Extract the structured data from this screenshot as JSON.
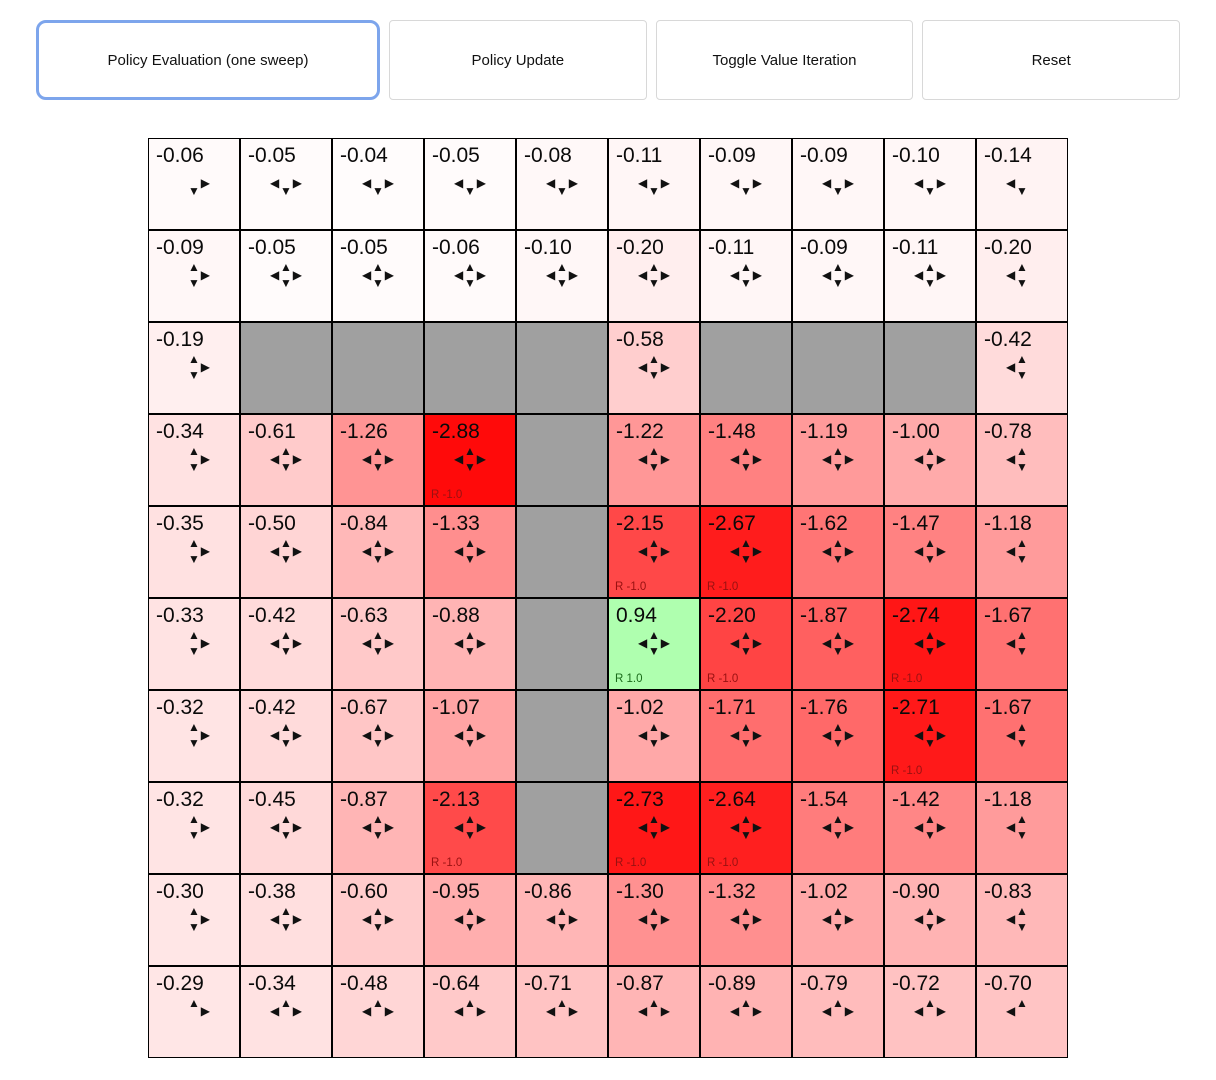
{
  "toolbar": {
    "buttons": [
      {
        "label": "Policy Evaluation (one sweep)",
        "active": true
      },
      {
        "label": "Policy Update",
        "active": false
      },
      {
        "label": "Toggle Value Iteration",
        "active": false
      },
      {
        "label": "Reset",
        "active": false
      }
    ]
  },
  "colors": {
    "wall": "#a0a0a0",
    "active_button_border": "#7da5ec",
    "grid_border": "#000000",
    "reward_negative_text": "#991111",
    "reward_positive_text": "#1a6b1a"
  },
  "arrow_glyphs": {
    "u": "▲",
    "d": "▼",
    "l": "◀",
    "r": "▶"
  },
  "grid": {
    "rows": 10,
    "cols": 10,
    "color_scale": {
      "neutral": "#ffffff",
      "negative_max": "#ff0000",
      "positive_max": "#00ff00",
      "abs_max": 3
    },
    "cells": [
      [
        {
          "value": "-0.06",
          "dirs": "dr"
        },
        {
          "value": "-0.05",
          "dirs": "dlr"
        },
        {
          "value": "-0.04",
          "dirs": "dlr"
        },
        {
          "value": "-0.05",
          "dirs": "dlr"
        },
        {
          "value": "-0.08",
          "dirs": "dlr"
        },
        {
          "value": "-0.11",
          "dirs": "dlr"
        },
        {
          "value": "-0.09",
          "dirs": "dlr"
        },
        {
          "value": "-0.09",
          "dirs": "dlr"
        },
        {
          "value": "-0.10",
          "dirs": "dlr"
        },
        {
          "value": "-0.14",
          "dirs": "dl"
        }
      ],
      [
        {
          "value": "-0.09",
          "dirs": "udr"
        },
        {
          "value": "-0.05",
          "dirs": "udlr"
        },
        {
          "value": "-0.05",
          "dirs": "udlr"
        },
        {
          "value": "-0.06",
          "dirs": "udlr"
        },
        {
          "value": "-0.10",
          "dirs": "udlr"
        },
        {
          "value": "-0.20",
          "dirs": "udlr"
        },
        {
          "value": "-0.11",
          "dirs": "udlr"
        },
        {
          "value": "-0.09",
          "dirs": "udlr"
        },
        {
          "value": "-0.11",
          "dirs": "udlr"
        },
        {
          "value": "-0.20",
          "dirs": "udl"
        }
      ],
      [
        {
          "value": "-0.19",
          "dirs": "udr"
        },
        {
          "wall": true
        },
        {
          "wall": true
        },
        {
          "wall": true
        },
        {
          "wall": true
        },
        {
          "value": "-0.58",
          "dirs": "udlr"
        },
        {
          "wall": true
        },
        {
          "wall": true
        },
        {
          "wall": true
        },
        {
          "value": "-0.42",
          "dirs": "udl"
        }
      ],
      [
        {
          "value": "-0.34",
          "dirs": "udr"
        },
        {
          "value": "-0.61",
          "dirs": "udlr"
        },
        {
          "value": "-1.26",
          "dirs": "udlr"
        },
        {
          "value": "-2.88",
          "dirs": "udlr",
          "reward": "R -1.0"
        },
        {
          "wall": true
        },
        {
          "value": "-1.22",
          "dirs": "udlr"
        },
        {
          "value": "-1.48",
          "dirs": "udlr"
        },
        {
          "value": "-1.19",
          "dirs": "udlr"
        },
        {
          "value": "-1.00",
          "dirs": "udlr"
        },
        {
          "value": "-0.78",
          "dirs": "udl"
        }
      ],
      [
        {
          "value": "-0.35",
          "dirs": "udr"
        },
        {
          "value": "-0.50",
          "dirs": "udlr"
        },
        {
          "value": "-0.84",
          "dirs": "udlr"
        },
        {
          "value": "-1.33",
          "dirs": "udlr"
        },
        {
          "wall": true
        },
        {
          "value": "-2.15",
          "dirs": "udlr",
          "reward": "R -1.0"
        },
        {
          "value": "-2.67",
          "dirs": "udlr",
          "reward": "R -1.0"
        },
        {
          "value": "-1.62",
          "dirs": "udlr"
        },
        {
          "value": "-1.47",
          "dirs": "udlr"
        },
        {
          "value": "-1.18",
          "dirs": "udl"
        }
      ],
      [
        {
          "value": "-0.33",
          "dirs": "udr"
        },
        {
          "value": "-0.42",
          "dirs": "udlr"
        },
        {
          "value": "-0.63",
          "dirs": "udlr"
        },
        {
          "value": "-0.88",
          "dirs": "udlr"
        },
        {
          "wall": true
        },
        {
          "value": "0.94",
          "dirs": "udlr",
          "reward": "R 1.0"
        },
        {
          "value": "-2.20",
          "dirs": "udlr",
          "reward": "R -1.0"
        },
        {
          "value": "-1.87",
          "dirs": "udlr"
        },
        {
          "value": "-2.74",
          "dirs": "udlr",
          "reward": "R -1.0"
        },
        {
          "value": "-1.67",
          "dirs": "udl"
        }
      ],
      [
        {
          "value": "-0.32",
          "dirs": "udr"
        },
        {
          "value": "-0.42",
          "dirs": "udlr"
        },
        {
          "value": "-0.67",
          "dirs": "udlr"
        },
        {
          "value": "-1.07",
          "dirs": "udlr"
        },
        {
          "wall": true
        },
        {
          "value": "-1.02",
          "dirs": "udlr"
        },
        {
          "value": "-1.71",
          "dirs": "udlr"
        },
        {
          "value": "-1.76",
          "dirs": "udlr"
        },
        {
          "value": "-2.71",
          "dirs": "udlr",
          "reward": "R -1.0"
        },
        {
          "value": "-1.67",
          "dirs": "udl"
        }
      ],
      [
        {
          "value": "-0.32",
          "dirs": "udr"
        },
        {
          "value": "-0.45",
          "dirs": "udlr"
        },
        {
          "value": "-0.87",
          "dirs": "udlr"
        },
        {
          "value": "-2.13",
          "dirs": "udlr",
          "reward": "R -1.0"
        },
        {
          "wall": true
        },
        {
          "value": "-2.73",
          "dirs": "udlr",
          "reward": "R -1.0"
        },
        {
          "value": "-2.64",
          "dirs": "udlr",
          "reward": "R -1.0"
        },
        {
          "value": "-1.54",
          "dirs": "udlr"
        },
        {
          "value": "-1.42",
          "dirs": "udlr"
        },
        {
          "value": "-1.18",
          "dirs": "udl"
        }
      ],
      [
        {
          "value": "-0.30",
          "dirs": "udr"
        },
        {
          "value": "-0.38",
          "dirs": "udlr"
        },
        {
          "value": "-0.60",
          "dirs": "udlr"
        },
        {
          "value": "-0.95",
          "dirs": "udlr"
        },
        {
          "value": "-0.86",
          "dirs": "udlr"
        },
        {
          "value": "-1.30",
          "dirs": "udlr"
        },
        {
          "value": "-1.32",
          "dirs": "udlr"
        },
        {
          "value": "-1.02",
          "dirs": "udlr"
        },
        {
          "value": "-0.90",
          "dirs": "udlr"
        },
        {
          "value": "-0.83",
          "dirs": "udl"
        }
      ],
      [
        {
          "value": "-0.29",
          "dirs": "ur"
        },
        {
          "value": "-0.34",
          "dirs": "ulr"
        },
        {
          "value": "-0.48",
          "dirs": "ulr"
        },
        {
          "value": "-0.64",
          "dirs": "ulr"
        },
        {
          "value": "-0.71",
          "dirs": "ulr"
        },
        {
          "value": "-0.87",
          "dirs": "ulr"
        },
        {
          "value": "-0.89",
          "dirs": "ulr"
        },
        {
          "value": "-0.79",
          "dirs": "ulr"
        },
        {
          "value": "-0.72",
          "dirs": "ulr"
        },
        {
          "value": "-0.70",
          "dirs": "ul"
        }
      ]
    ]
  }
}
